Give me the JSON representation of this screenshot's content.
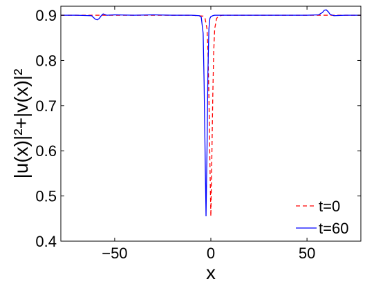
{
  "chart_data": {
    "type": "line",
    "xlabel": "x",
    "ylabel": "|u(x)|²+|v(x)|²",
    "xlim": [
      -78,
      78
    ],
    "ylim": [
      0.4,
      0.92
    ],
    "xticks": [
      -50,
      0,
      50
    ],
    "xtick_labels": [
      "−50",
      "0",
      "50"
    ],
    "yticks": [
      0.4,
      0.5,
      0.6,
      0.7,
      0.8,
      0.9
    ],
    "ytick_labels": [
      "0.4",
      "0.5",
      "0.6",
      "0.7",
      "0.8",
      "0.9"
    ],
    "grid": false,
    "legend_position": "bottom-right",
    "series": [
      {
        "name": "t=0",
        "color": "#ff0000",
        "style": "dashed",
        "x": [
          -78,
          -10,
          -4,
          -3,
          -2,
          -1.5,
          -1,
          -0.5,
          0,
          0.5,
          1,
          1.5,
          2,
          3,
          4,
          6,
          10,
          78
        ],
        "y": [
          0.9,
          0.9,
          0.898,
          0.893,
          0.87,
          0.82,
          0.72,
          0.58,
          0.455,
          0.58,
          0.72,
          0.82,
          0.87,
          0.893,
          0.898,
          0.9,
          0.9,
          0.9
        ]
      },
      {
        "name": "t=60",
        "color": "#0000ff",
        "style": "solid",
        "x": [
          -78,
          -70,
          -62,
          -61,
          -60,
          -59,
          -58,
          -57,
          -56,
          -54,
          -50,
          -40,
          -30,
          -20,
          -10,
          -6,
          -5,
          -4,
          -3.5,
          -3,
          -2.5,
          -2,
          -1.5,
          -1,
          -0.5,
          0,
          1,
          2,
          5,
          10,
          20,
          30,
          40,
          50,
          56,
          58,
          59,
          60,
          61,
          62,
          64,
          70,
          78
        ],
        "y": [
          0.9,
          0.9,
          0.899,
          0.895,
          0.891,
          0.89,
          0.893,
          0.899,
          0.903,
          0.9,
          0.901,
          0.9,
          0.901,
          0.9,
          0.9,
          0.899,
          0.896,
          0.86,
          0.75,
          0.6,
          0.455,
          0.6,
          0.78,
          0.87,
          0.893,
          0.897,
          0.899,
          0.9,
          0.9,
          0.9,
          0.9,
          0.9,
          0.9,
          0.9,
          0.901,
          0.906,
          0.911,
          0.912,
          0.908,
          0.902,
          0.899,
          0.9,
          0.9
        ]
      }
    ]
  }
}
